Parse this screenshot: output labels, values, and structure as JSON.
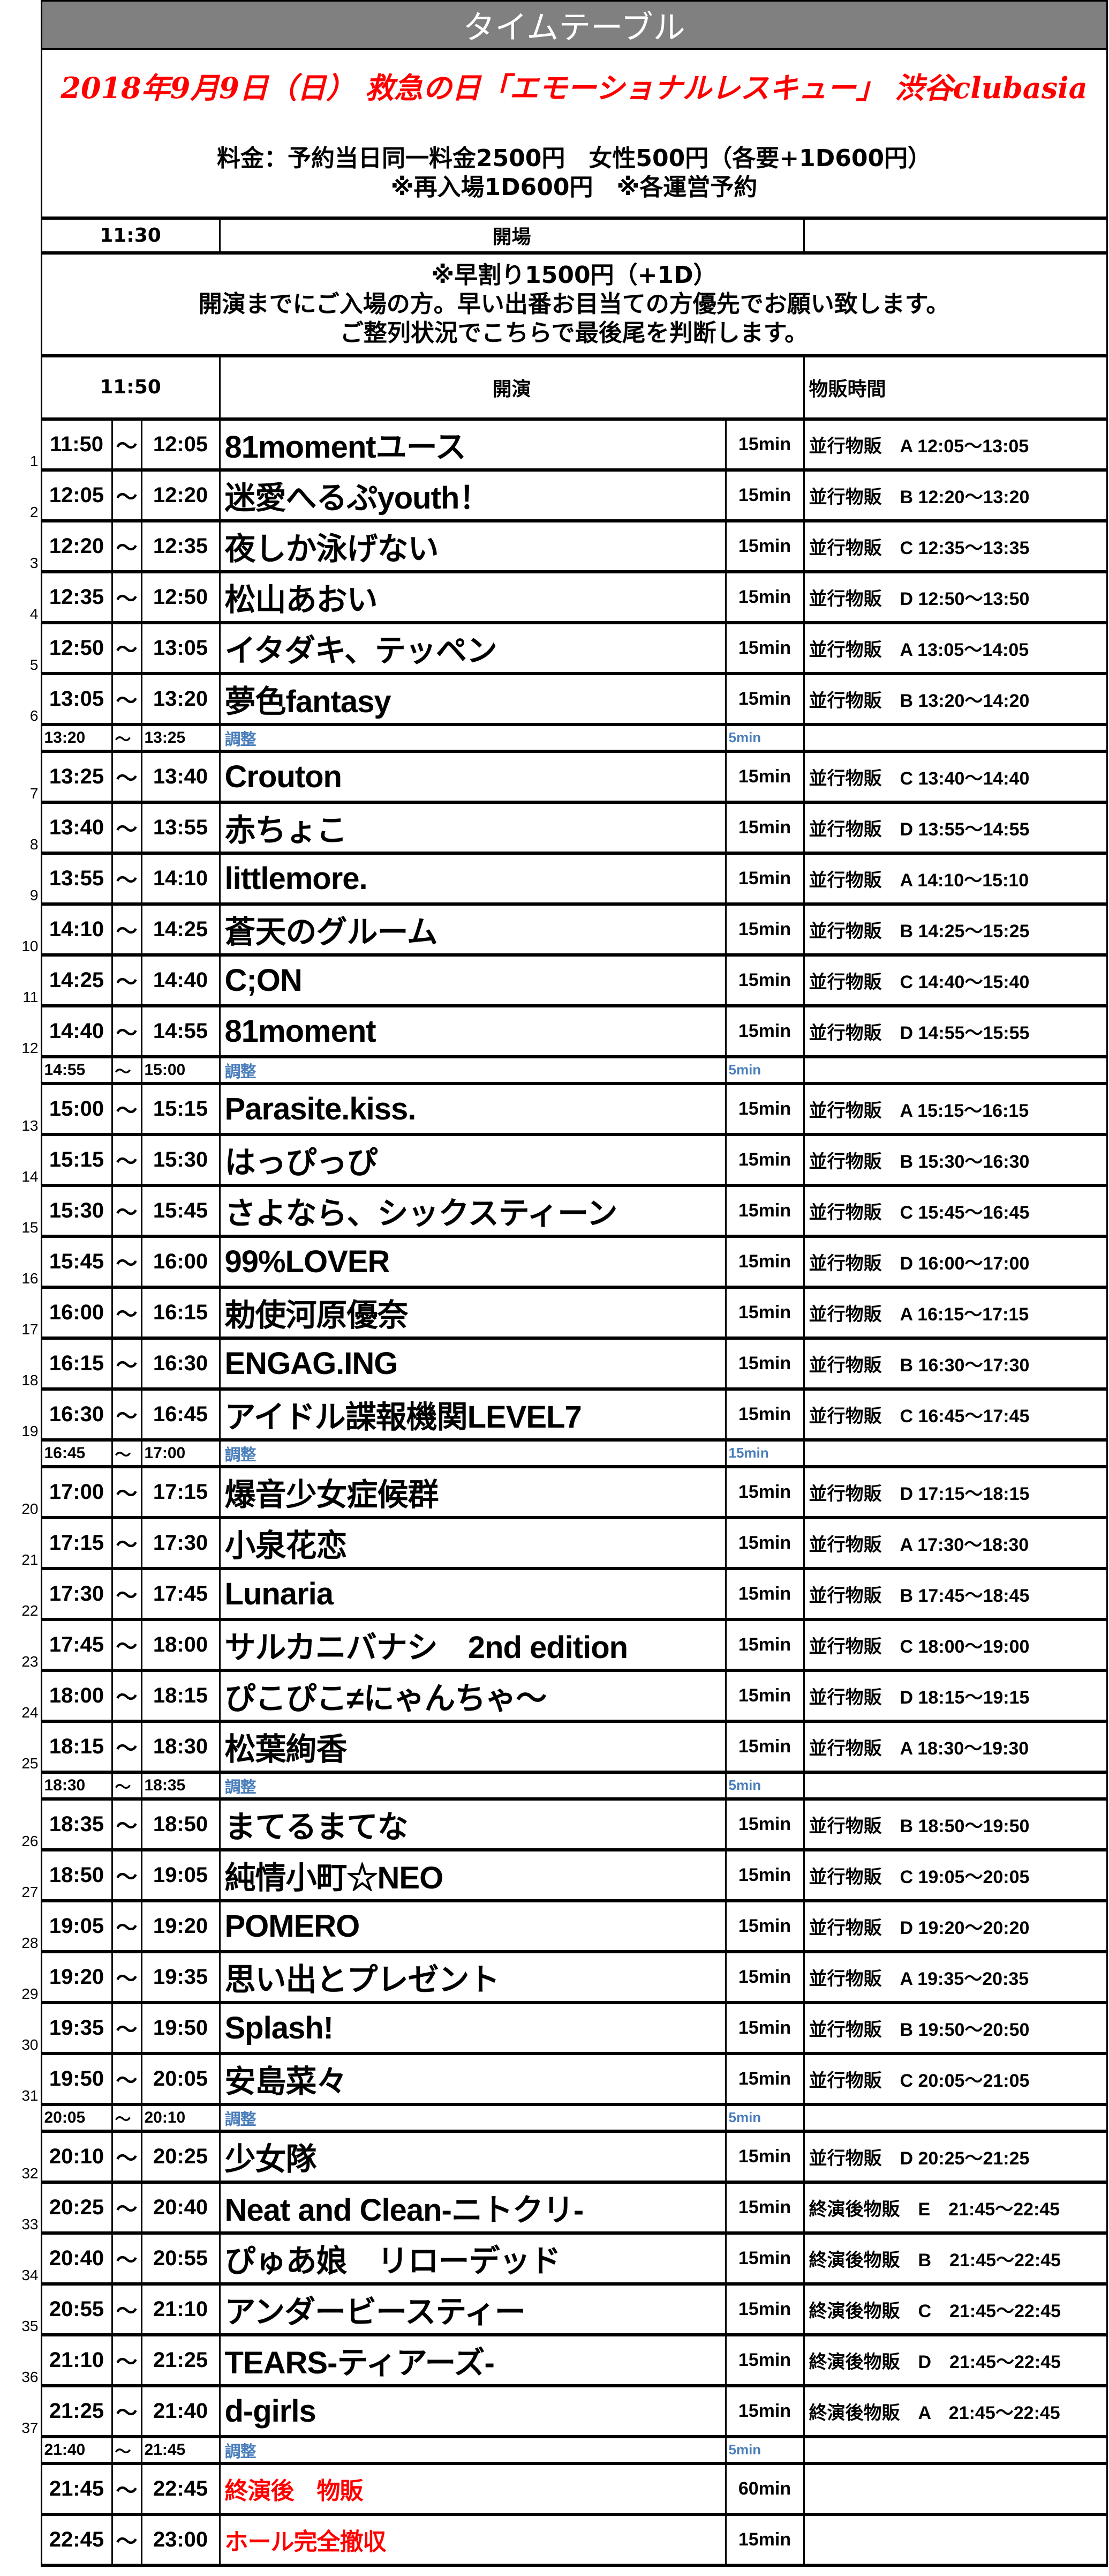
{
  "header": {
    "title": "タイムテーブル",
    "event": "2018年9月9日（日） 救急の日「エモーショナルレスキュー」 渋谷clubasia",
    "price_line1": "料金：予約当日同一料金2500円　女性500円（各要+1D600円）",
    "price_line2": "※再入場1D600円　※各運営予約"
  },
  "open": {
    "time": "11:30",
    "label": "開場"
  },
  "notes": {
    "line1": "※早割り1500円（+1D）",
    "line2": "開演までにご入場の方。早い出番お目当ての方優先でお願い致します。",
    "line3": "ご整列状況でこちらで最後尾を判断します。"
  },
  "start": {
    "time": "11:50",
    "label": "開演",
    "merch_header": "物販時間"
  },
  "colors": {
    "adjust": "#4a7ebb",
    "special": "#ff0000",
    "title_bg": "#808080"
  },
  "rows": [
    {
      "type": "act",
      "no": "1",
      "start": "11:50",
      "end": "12:05",
      "name": "81momentユース",
      "dur": "15min",
      "merch": "並行物販　A 12:05〜13:05"
    },
    {
      "type": "act",
      "no": "2",
      "start": "12:05",
      "end": "12:20",
      "name": "迷愛へるぷyouth！",
      "dur": "15min",
      "merch": "並行物販　B 12:20〜13:20"
    },
    {
      "type": "act",
      "no": "3",
      "start": "12:20",
      "end": "12:35",
      "name": "夜しか泳げない",
      "dur": "15min",
      "merch": "並行物販　C 12:35〜13:35"
    },
    {
      "type": "act",
      "no": "4",
      "start": "12:35",
      "end": "12:50",
      "name": "松山あおい",
      "dur": "15min",
      "merch": "並行物販　D 12:50〜13:50"
    },
    {
      "type": "act",
      "no": "5",
      "start": "12:50",
      "end": "13:05",
      "name": "イタダキ、テッペン",
      "dur": "15min",
      "merch": "並行物販　A 13:05〜14:05"
    },
    {
      "type": "act",
      "no": "6",
      "start": "13:05",
      "end": "13:20",
      "name": "夢色fantasy",
      "dur": "15min",
      "merch": "並行物販　B 13:20〜14:20"
    },
    {
      "type": "adj",
      "start": "13:20",
      "end": "13:25",
      "name": "調整",
      "dur": "5min"
    },
    {
      "type": "act",
      "no": "7",
      "start": "13:25",
      "end": "13:40",
      "name": "Crouton",
      "dur": "15min",
      "merch": "並行物販　C 13:40〜14:40"
    },
    {
      "type": "act",
      "no": "8",
      "start": "13:40",
      "end": "13:55",
      "name": "赤ちょこ",
      "dur": "15min",
      "merch": "並行物販　D 13:55〜14:55"
    },
    {
      "type": "act",
      "no": "9",
      "start": "13:55",
      "end": "14:10",
      "name": "littlemore.",
      "dur": "15min",
      "merch": "並行物販　A 14:10〜15:10"
    },
    {
      "type": "act",
      "no": "10",
      "start": "14:10",
      "end": "14:25",
      "name": "蒼天のグルーム",
      "dur": "15min",
      "merch": "並行物販　B 14:25〜15:25"
    },
    {
      "type": "act",
      "no": "11",
      "start": "14:25",
      "end": "14:40",
      "name": "C;ON",
      "dur": "15min",
      "merch": "並行物販　C 14:40〜15:40"
    },
    {
      "type": "act",
      "no": "12",
      "start": "14:40",
      "end": "14:55",
      "name": "81moment",
      "dur": "15min",
      "merch": "並行物販　D 14:55〜15:55"
    },
    {
      "type": "adj",
      "start": "14:55",
      "end": "15:00",
      "name": "調整",
      "dur": "5min"
    },
    {
      "type": "act",
      "no": "13",
      "start": "15:00",
      "end": "15:15",
      "name": "Parasite.kiss.",
      "dur": "15min",
      "merch": "並行物販　A 15:15〜16:15"
    },
    {
      "type": "act",
      "no": "14",
      "start": "15:15",
      "end": "15:30",
      "name": "はっぴっぴ",
      "dur": "15min",
      "merch": "並行物販　B 15:30〜16:30"
    },
    {
      "type": "act",
      "no": "15",
      "start": "15:30",
      "end": "15:45",
      "name": "さよなら、シックスティーン",
      "dur": "15min",
      "merch": "並行物販　C 15:45〜16:45"
    },
    {
      "type": "act",
      "no": "16",
      "start": "15:45",
      "end": "16:00",
      "name": "99%LOVER",
      "dur": "15min",
      "merch": "並行物販　D 16:00〜17:00"
    },
    {
      "type": "act",
      "no": "17",
      "start": "16:00",
      "end": "16:15",
      "name": "勅使河原優奈",
      "dur": "15min",
      "merch": "並行物販　A 16:15〜17:15"
    },
    {
      "type": "act",
      "no": "18",
      "start": "16:15",
      "end": "16:30",
      "name": "ENGAG.ING",
      "dur": "15min",
      "merch": "並行物販　B 16:30〜17:30"
    },
    {
      "type": "act",
      "no": "19",
      "start": "16:30",
      "end": "16:45",
      "name": "アイドル諜報機関LEVEL7",
      "dur": "15min",
      "merch": "並行物販　C 16:45〜17:45"
    },
    {
      "type": "adj",
      "start": "16:45",
      "end": "17:00",
      "name": "調整",
      "dur": "15min"
    },
    {
      "type": "act",
      "no": "20",
      "start": "17:00",
      "end": "17:15",
      "name": "爆音少女症候群",
      "dur": "15min",
      "merch": "並行物販　D 17:15〜18:15"
    },
    {
      "type": "act",
      "no": "21",
      "start": "17:15",
      "end": "17:30",
      "name": "小泉花恋",
      "dur": "15min",
      "merch": "並行物販　A 17:30〜18:30"
    },
    {
      "type": "act",
      "no": "22",
      "start": "17:30",
      "end": "17:45",
      "name": "Lunaria",
      "dur": "15min",
      "merch": "並行物販　B 17:45〜18:45"
    },
    {
      "type": "act",
      "no": "23",
      "start": "17:45",
      "end": "18:00",
      "name": "サルカニバナシ　2nd edition",
      "dur": "15min",
      "merch": "並行物販　C 18:00〜19:00"
    },
    {
      "type": "act",
      "no": "24",
      "start": "18:00",
      "end": "18:15",
      "name": "ぴこぴこ≠にゃんちゃ〜",
      "dur": "15min",
      "merch": "並行物販　D 18:15〜19:15"
    },
    {
      "type": "act",
      "no": "25",
      "start": "18:15",
      "end": "18:30",
      "name": "松葉絢香",
      "dur": "15min",
      "merch": "並行物販　A 18:30〜19:30"
    },
    {
      "type": "adj",
      "start": "18:30",
      "end": "18:35",
      "name": "調整",
      "dur": "5min"
    },
    {
      "type": "act",
      "no": "26",
      "start": "18:35",
      "end": "18:50",
      "name": "まてるまてな",
      "dur": "15min",
      "merch": "並行物販　B 18:50〜19:50"
    },
    {
      "type": "act",
      "no": "27",
      "start": "18:50",
      "end": "19:05",
      "name": "純情小町☆NEO",
      "dur": "15min",
      "merch": "並行物販　C 19:05〜20:05"
    },
    {
      "type": "act",
      "no": "28",
      "start": "19:05",
      "end": "19:20",
      "name": "POMERO",
      "dur": "15min",
      "merch": "並行物販　D 19:20〜20:20"
    },
    {
      "type": "act",
      "no": "29",
      "start": "19:20",
      "end": "19:35",
      "name": "思い出とプレゼント",
      "dur": "15min",
      "merch": "並行物販　A 19:35〜20:35"
    },
    {
      "type": "act",
      "no": "30",
      "start": "19:35",
      "end": "19:50",
      "name": "Splash!",
      "dur": "15min",
      "merch": "並行物販　B 19:50〜20:50"
    },
    {
      "type": "act",
      "no": "31",
      "start": "19:50",
      "end": "20:05",
      "name": "安島菜々",
      "dur": "15min",
      "merch": "並行物販　C 20:05〜21:05"
    },
    {
      "type": "adj",
      "start": "20:05",
      "end": "20:10",
      "name": "調整",
      "dur": "5min"
    },
    {
      "type": "act",
      "no": "32",
      "start": "20:10",
      "end": "20:25",
      "name": "少女隊",
      "dur": "15min",
      "merch": "並行物販　D 20:25〜21:25"
    },
    {
      "type": "act",
      "no": "33",
      "start": "20:25",
      "end": "20:40",
      "name": "Neat and Clean-ニトクリ-",
      "dur": "15min",
      "merch": "終演後物販　E　21:45〜22:45"
    },
    {
      "type": "act",
      "no": "34",
      "start": "20:40",
      "end": "20:55",
      "name": "ぴゅあ娘　リローデッド",
      "dur": "15min",
      "merch": "終演後物販　B　21:45〜22:45"
    },
    {
      "type": "act",
      "no": "35",
      "start": "20:55",
      "end": "21:10",
      "name": "アンダービースティー",
      "dur": "15min",
      "merch": "終演後物販　C　21:45〜22:45"
    },
    {
      "type": "act",
      "no": "36",
      "start": "21:10",
      "end": "21:25",
      "name": "TEARS-ティアーズ-",
      "dur": "15min",
      "merch": "終演後物販　D　21:45〜22:45"
    },
    {
      "type": "act",
      "no": "37",
      "start": "21:25",
      "end": "21:40",
      "name": "d-girls",
      "dur": "15min",
      "merch": "終演後物販　A　21:45〜22:45"
    },
    {
      "type": "adj",
      "start": "21:40",
      "end": "21:45",
      "name": "調整",
      "dur": "5min"
    },
    {
      "type": "special",
      "start": "21:45",
      "end": "22:45",
      "name": "終演後　物販",
      "dur": "60min"
    },
    {
      "type": "special",
      "start": "22:45",
      "end": "23:00",
      "name": "ホール完全撤収",
      "dur": "15min"
    }
  ],
  "tilde": "〜"
}
